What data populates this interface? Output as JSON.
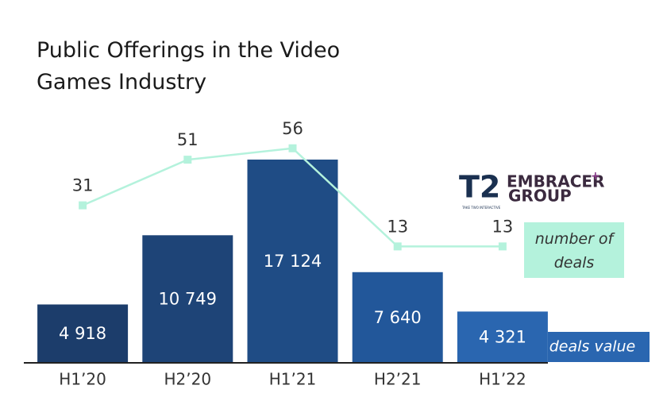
{
  "chart_data": {
    "type": "bar",
    "title": "Public Offerings in the Video Games Industry",
    "categories": [
      "H1’20",
      "H2’20",
      "H1’21",
      "H2’21",
      "H1’22"
    ],
    "series": [
      {
        "name": "deals value",
        "type": "bar",
        "color": "#2a66b0",
        "colors": [
          "#1c3d6b",
          "#1e4477",
          "#1f4c85",
          "#22579a",
          "#2a66b0"
        ],
        "values": [
          4918,
          10749,
          17124,
          7640,
          4321
        ],
        "value_labels": [
          "4 918",
          "10 749",
          "17 124",
          "7 640",
          "4 321"
        ]
      },
      {
        "name": "number of deals",
        "type": "line",
        "axis": "y2",
        "color": "#b4f2dc",
        "values": [
          31,
          51,
          56,
          13,
          13
        ]
      }
    ],
    "ylim": [
      0,
      20000
    ],
    "y2lim": [
      -38,
      66
    ]
  },
  "logos": {
    "take_two": "T2",
    "take_two_caption": "TAKE TWO INTERACTIVE",
    "embracer": "EMBRACER",
    "embracer_plus": "+",
    "embracer_group": "GROUP"
  }
}
